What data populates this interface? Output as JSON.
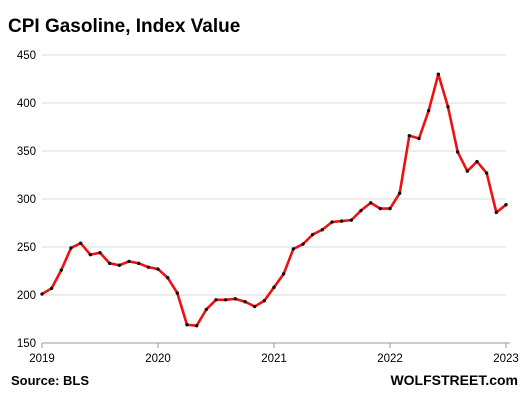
{
  "title": "CPI Gasoline,  Index Value",
  "source": "Source: BLS",
  "brand": "WOLFSTREET.com",
  "colors": {
    "line": "#ee1111",
    "marker": "#111111",
    "grid": "#d9d9d9",
    "axis": "#999999"
  },
  "chart_data": {
    "type": "line",
    "title": "CPI Gasoline,  Index Value",
    "xlabel": "",
    "ylabel": "",
    "x_ticks": [
      "2019",
      "2020",
      "2021",
      "2022",
      "2023"
    ],
    "y_ticks": [
      150,
      200,
      250,
      300,
      350,
      400,
      450
    ],
    "xlim": [
      "2019-01",
      "2023-01"
    ],
    "ylim": [
      150,
      450
    ],
    "grid": "horizontal",
    "legend": "none",
    "x": [
      "2019-01",
      "2019-02",
      "2019-03",
      "2019-04",
      "2019-05",
      "2019-06",
      "2019-07",
      "2019-08",
      "2019-09",
      "2019-10",
      "2019-11",
      "2019-12",
      "2020-01",
      "2020-02",
      "2020-03",
      "2020-04",
      "2020-05",
      "2020-06",
      "2020-07",
      "2020-08",
      "2020-09",
      "2020-10",
      "2020-11",
      "2020-12",
      "2021-01",
      "2021-02",
      "2021-03",
      "2021-04",
      "2021-05",
      "2021-06",
      "2021-07",
      "2021-08",
      "2021-09",
      "2021-10",
      "2021-11",
      "2021-12",
      "2022-01",
      "2022-02",
      "2022-03",
      "2022-04",
      "2022-05",
      "2022-06",
      "2022-07",
      "2022-08",
      "2022-09",
      "2022-10",
      "2022-11",
      "2022-12",
      "2023-01"
    ],
    "series": [
      {
        "values": [
          201,
          207,
          226,
          249,
          254,
          242,
          244,
          233,
          231,
          235,
          233,
          229,
          227,
          218,
          202,
          169,
          168,
          185,
          195,
          195,
          196,
          193,
          188,
          194,
          208,
          222,
          248,
          253,
          263,
          268,
          276,
          277,
          278,
          288,
          296,
          290,
          290,
          306,
          366,
          363,
          392,
          430,
          396,
          349,
          329,
          339,
          327,
          286,
          294
        ]
      }
    ]
  }
}
